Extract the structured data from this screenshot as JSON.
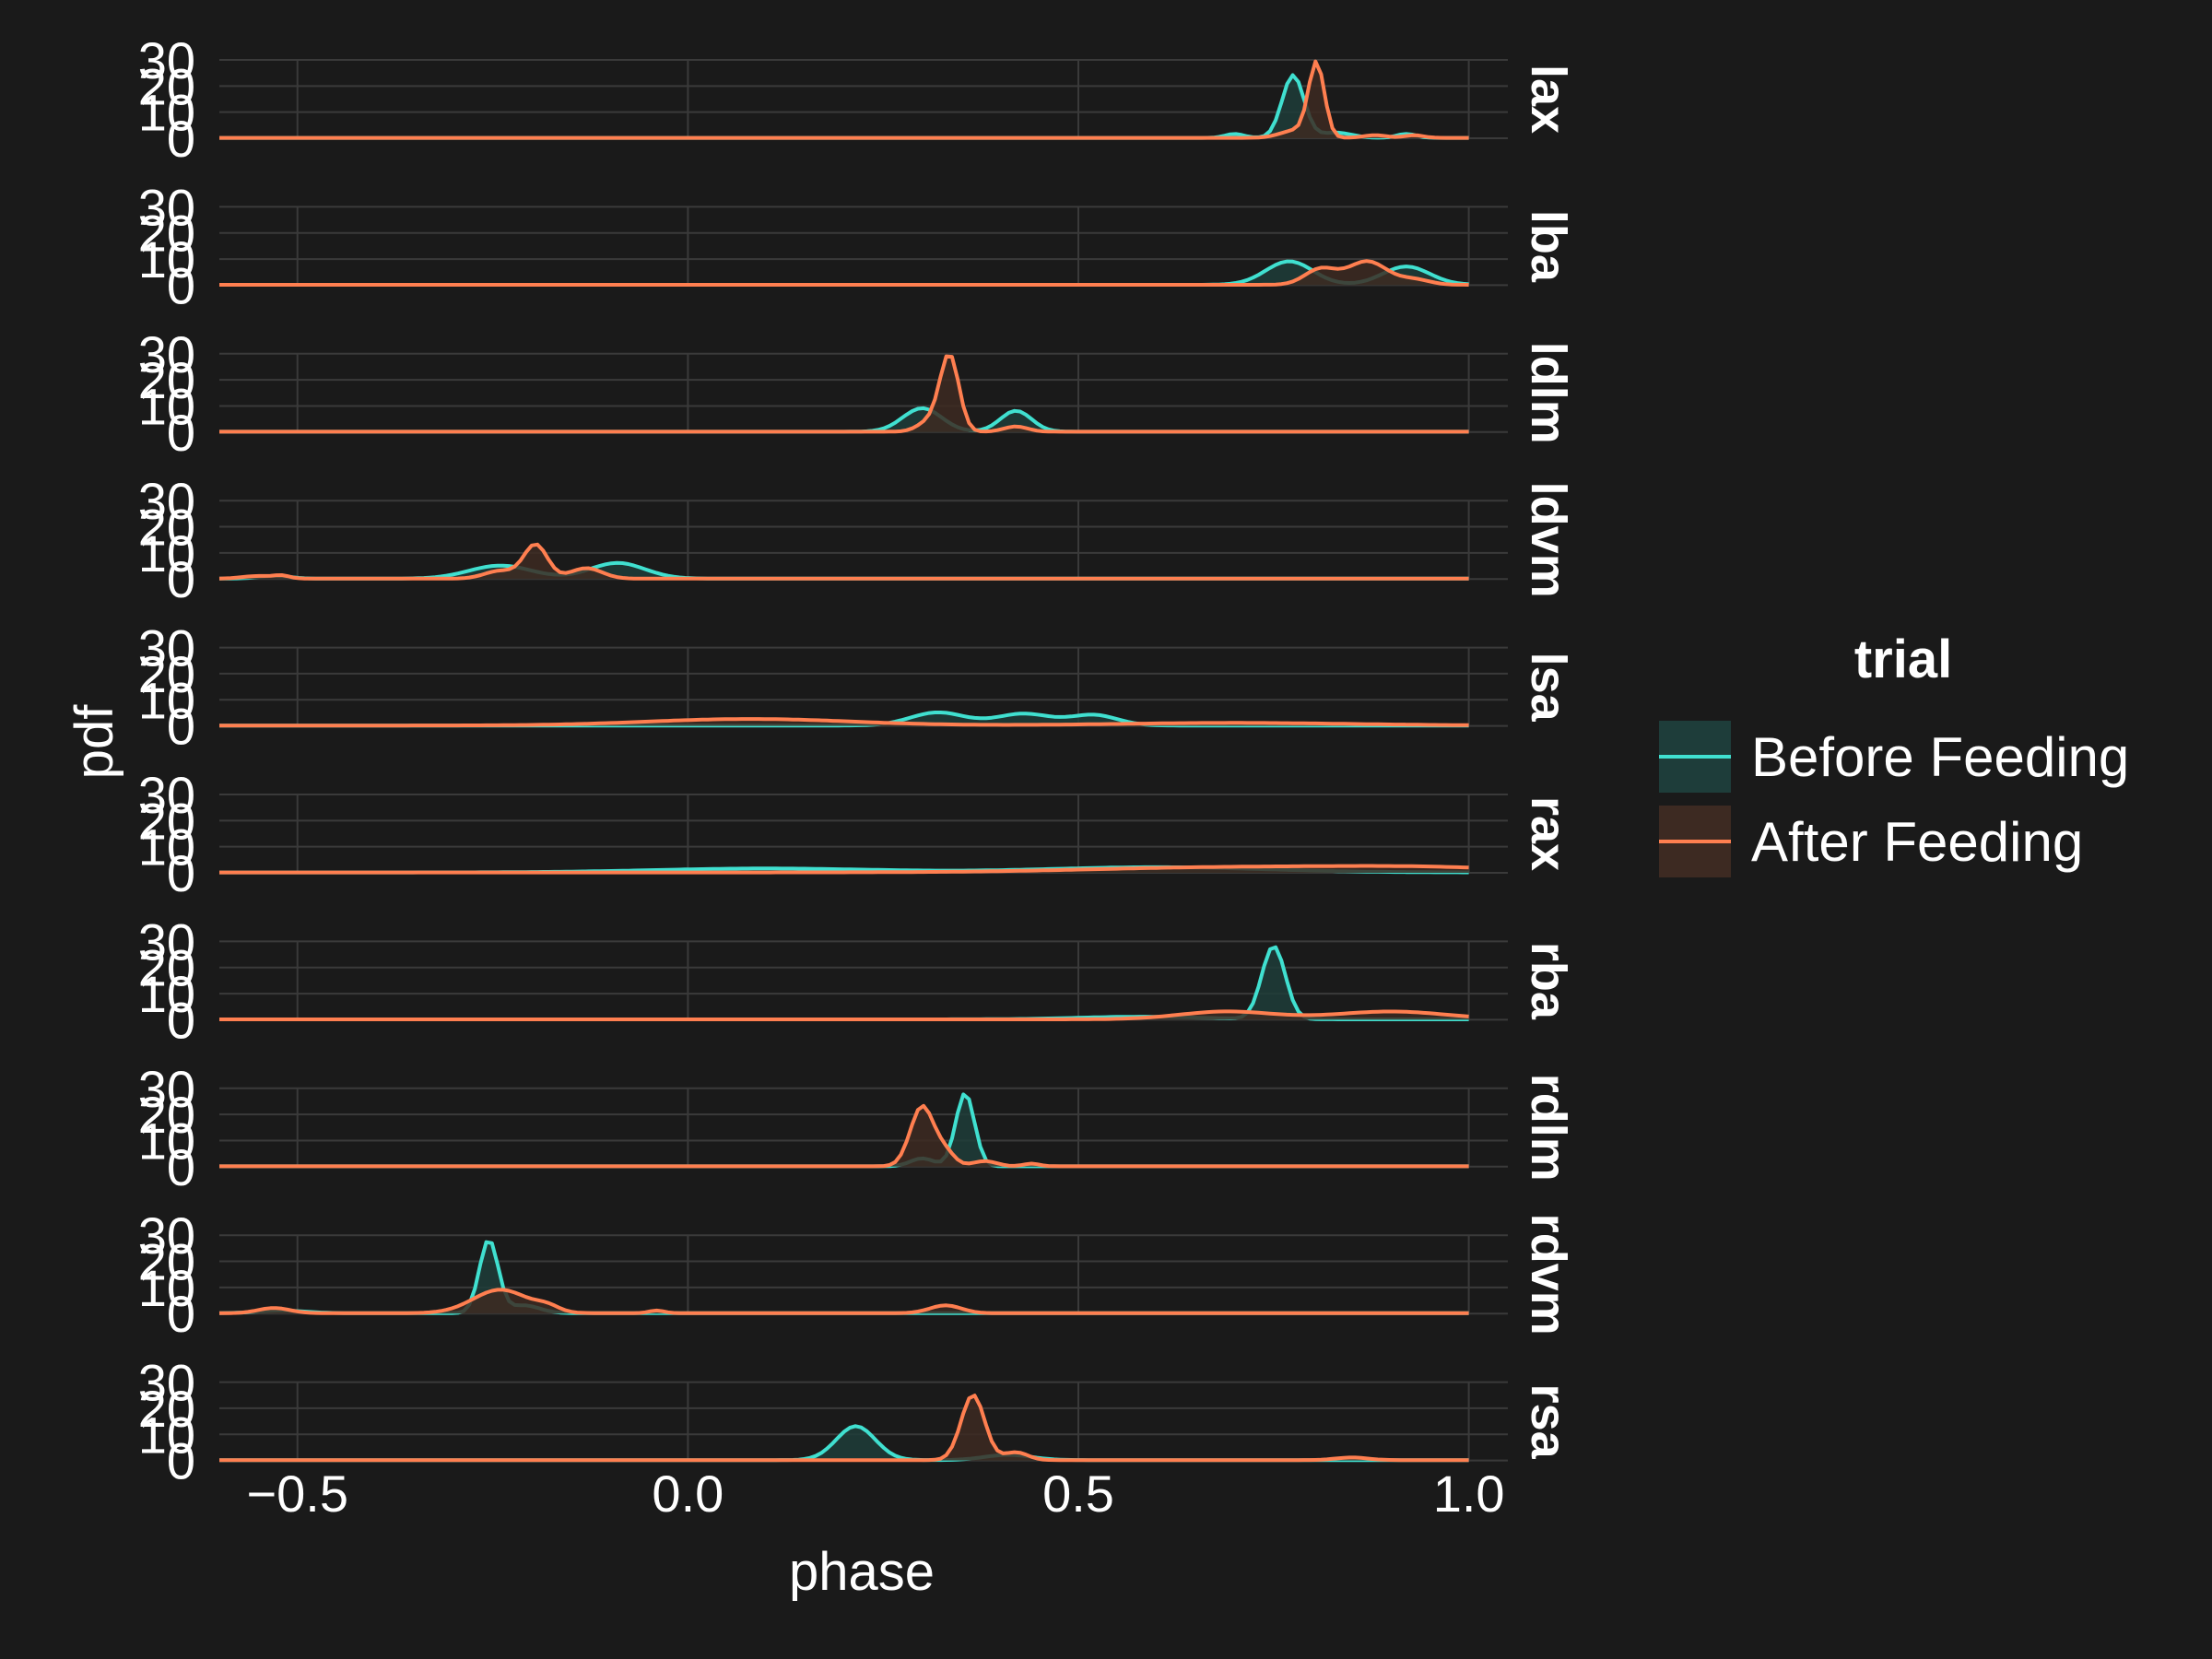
{
  "chart_data": {
    "type": "area",
    "xlabel": "phase",
    "ylabel": "pdf",
    "xlim": [
      -0.6,
      1.05
    ],
    "ylim": [
      0,
      30
    ],
    "xticks": [
      "-0.5",
      "0.0",
      "0.5",
      "1.0"
    ],
    "xtick_values": [
      -0.5,
      0.0,
      0.5,
      1.0
    ],
    "yticks": [
      "0",
      "10",
      "20",
      "30"
    ],
    "ytick_values": [
      0,
      10,
      20,
      30
    ],
    "grid": true,
    "legend": {
      "title": "trial",
      "position": "right",
      "entries": [
        "Before Feeding",
        "After Feeding"
      ]
    },
    "colors": {
      "Before Feeding": "#40e0d0",
      "After Feeding": "#ff7f50",
      "before_fill": "#1e3d3a",
      "after_fill": "#3d2a22",
      "background": "#1a1a1a",
      "grid": "#3a3a3a"
    },
    "panels": [
      {
        "label": "lax",
        "series": [
          {
            "name": "Before Feeding",
            "peaks": [
              [
                0.7,
                0.012,
                1.5
              ],
              [
                0.775,
                0.014,
                24
              ],
              [
                0.83,
                0.02,
                2
              ],
              [
                0.92,
                0.012,
                1.5
              ]
            ]
          },
          {
            "name": "After Feeding",
            "peaks": [
              [
                0.805,
                0.01,
                28
              ],
              [
                0.78,
                0.02,
                3
              ],
              [
                0.88,
                0.015,
                1
              ],
              [
                0.93,
                0.012,
                1
              ]
            ]
          }
        ]
      },
      {
        "label": "lba",
        "series": [
          {
            "name": "Before Feeding",
            "peaks": [
              [
                0.77,
                0.03,
                9
              ],
              [
                0.92,
                0.03,
                7
              ]
            ]
          },
          {
            "name": "After Feeding",
            "peaks": [
              [
                0.81,
                0.02,
                6
              ],
              [
                0.87,
                0.025,
                9
              ],
              [
                0.93,
                0.02,
                2
              ]
            ]
          }
        ]
      },
      {
        "label": "ldlm",
        "series": [
          {
            "name": "Before Feeding",
            "peaks": [
              [
                0.3,
                0.025,
                9
              ],
              [
                0.42,
                0.02,
                8
              ]
            ]
          },
          {
            "name": "After Feeding",
            "peaks": [
              [
                0.335,
                0.012,
                29
              ],
              [
                0.31,
                0.015,
                4
              ],
              [
                0.42,
                0.015,
                2
              ]
            ]
          }
        ]
      },
      {
        "label": "ldvm",
        "series": [
          {
            "name": "Before Feeding",
            "peaks": [
              [
                -0.24,
                0.04,
                5
              ],
              [
                -0.09,
                0.035,
                6
              ],
              [
                -0.53,
                0.02,
                1
              ]
            ]
          },
          {
            "name": "After Feeding",
            "peaks": [
              [
                -0.195,
                0.015,
                13
              ],
              [
                -0.24,
                0.02,
                3
              ],
              [
                -0.13,
                0.02,
                4
              ],
              [
                -0.55,
                0.02,
                1
              ],
              [
                -0.52,
                0.01,
                1
              ]
            ]
          }
        ]
      },
      {
        "label": "lsa",
        "series": [
          {
            "name": "Before Feeding",
            "peaks": [
              [
                0.32,
                0.035,
                5
              ],
              [
                0.43,
                0.035,
                4.5
              ],
              [
                0.52,
                0.03,
                4
              ]
            ]
          },
          {
            "name": "After Feeding",
            "peaks": [
              [
                0.08,
                0.13,
                2.5
              ],
              [
                0.7,
                0.15,
                1
              ]
            ]
          }
        ]
      },
      {
        "label": "rax",
        "series": [
          {
            "name": "Before Feeding",
            "peaks": [
              [
                0.1,
                0.14,
                1.5
              ],
              [
                0.6,
                0.14,
                2
              ]
            ]
          },
          {
            "name": "After Feeding",
            "peaks": [
              [
                0.7,
                0.18,
                2
              ],
              [
                0.95,
                0.12,
                1.5
              ]
            ]
          }
        ]
      },
      {
        "label": "rba",
        "series": [
          {
            "name": "Before Feeding",
            "peaks": [
              [
                0.75,
                0.015,
                28
              ],
              [
                0.58,
                0.08,
                1
              ]
            ]
          },
          {
            "name": "After Feeding",
            "peaks": [
              [
                0.69,
                0.06,
                3
              ],
              [
                0.9,
                0.07,
                3
              ]
            ]
          }
        ]
      },
      {
        "label": "rdlm",
        "series": [
          {
            "name": "Before Feeding",
            "peaks": [
              [
                0.355,
                0.012,
                28
              ],
              [
                0.3,
                0.015,
                3
              ]
            ]
          },
          {
            "name": "After Feeding",
            "peaks": [
              [
                0.3,
                0.015,
                23
              ],
              [
                0.33,
                0.012,
                5
              ],
              [
                0.38,
                0.015,
                2
              ],
              [
                0.44,
                0.01,
                1
              ]
            ]
          }
        ]
      },
      {
        "label": "rdvm",
        "series": [
          {
            "name": "Before Feeding",
            "peaks": [
              [
                -0.255,
                0.012,
                28
              ],
              [
                -0.21,
                0.02,
                3
              ],
              [
                -0.52,
                0.03,
                1
              ]
            ]
          },
          {
            "name": "After Feeding",
            "peaks": [
              [
                -0.24,
                0.035,
                9
              ],
              [
                -0.53,
                0.02,
                2
              ],
              [
                -0.18,
                0.015,
                2
              ],
              [
                0.33,
                0.02,
                3
              ],
              [
                -0.04,
                0.01,
                1
              ]
            ]
          }
        ]
      },
      {
        "label": "rsa",
        "series": [
          {
            "name": "Before Feeding",
            "peaks": [
              [
                0.215,
                0.025,
                13
              ],
              [
                0.41,
                0.03,
                2
              ]
            ]
          },
          {
            "name": "After Feeding",
            "peaks": [
              [
                0.365,
                0.015,
                25
              ],
              [
                0.42,
                0.015,
                3
              ],
              [
                0.85,
                0.02,
                1
              ]
            ]
          }
        ]
      }
    ]
  }
}
